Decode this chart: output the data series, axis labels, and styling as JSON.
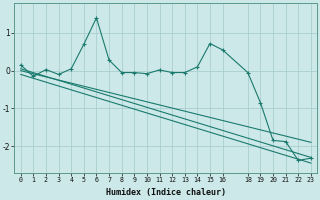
{
  "xlabel": "Humidex (Indice chaleur)",
  "ylabel": "",
  "xlim": [
    -0.5,
    23.5
  ],
  "ylim": [
    -2.7,
    1.8
  ],
  "background_color": "#cce8e8",
  "grid_color": "#aacece",
  "line_color": "#1a7a6e",
  "xticks": [
    0,
    1,
    2,
    3,
    4,
    5,
    6,
    7,
    8,
    9,
    10,
    11,
    12,
    13,
    14,
    15,
    16,
    18,
    19,
    20,
    21,
    22,
    23
  ],
  "yticks": [
    -2,
    -1,
    0,
    1
  ],
  "series": [
    {
      "x": [
        0,
        1,
        2,
        3,
        4,
        5,
        6,
        7,
        8,
        9,
        10,
        11,
        12,
        13,
        14,
        15,
        16,
        18,
        19,
        20,
        21,
        22,
        23
      ],
      "y": [
        0.15,
        -0.15,
        0.03,
        -0.1,
        0.05,
        0.7,
        1.4,
        0.28,
        -0.05,
        -0.05,
        -0.08,
        0.02,
        -0.05,
        -0.05,
        0.1,
        0.72,
        0.55,
        -0.05,
        -0.85,
        -1.85,
        -1.88,
        -2.38,
        -2.32
      ]
    },
    {
      "x": [
        0,
        23
      ],
      "y": [
        0.05,
        -2.3
      ]
    },
    {
      "x": [
        0,
        23
      ],
      "y": [
        -0.1,
        -2.45
      ]
    },
    {
      "x": [
        0,
        23
      ],
      "y": [
        0.0,
        -1.9
      ]
    }
  ]
}
